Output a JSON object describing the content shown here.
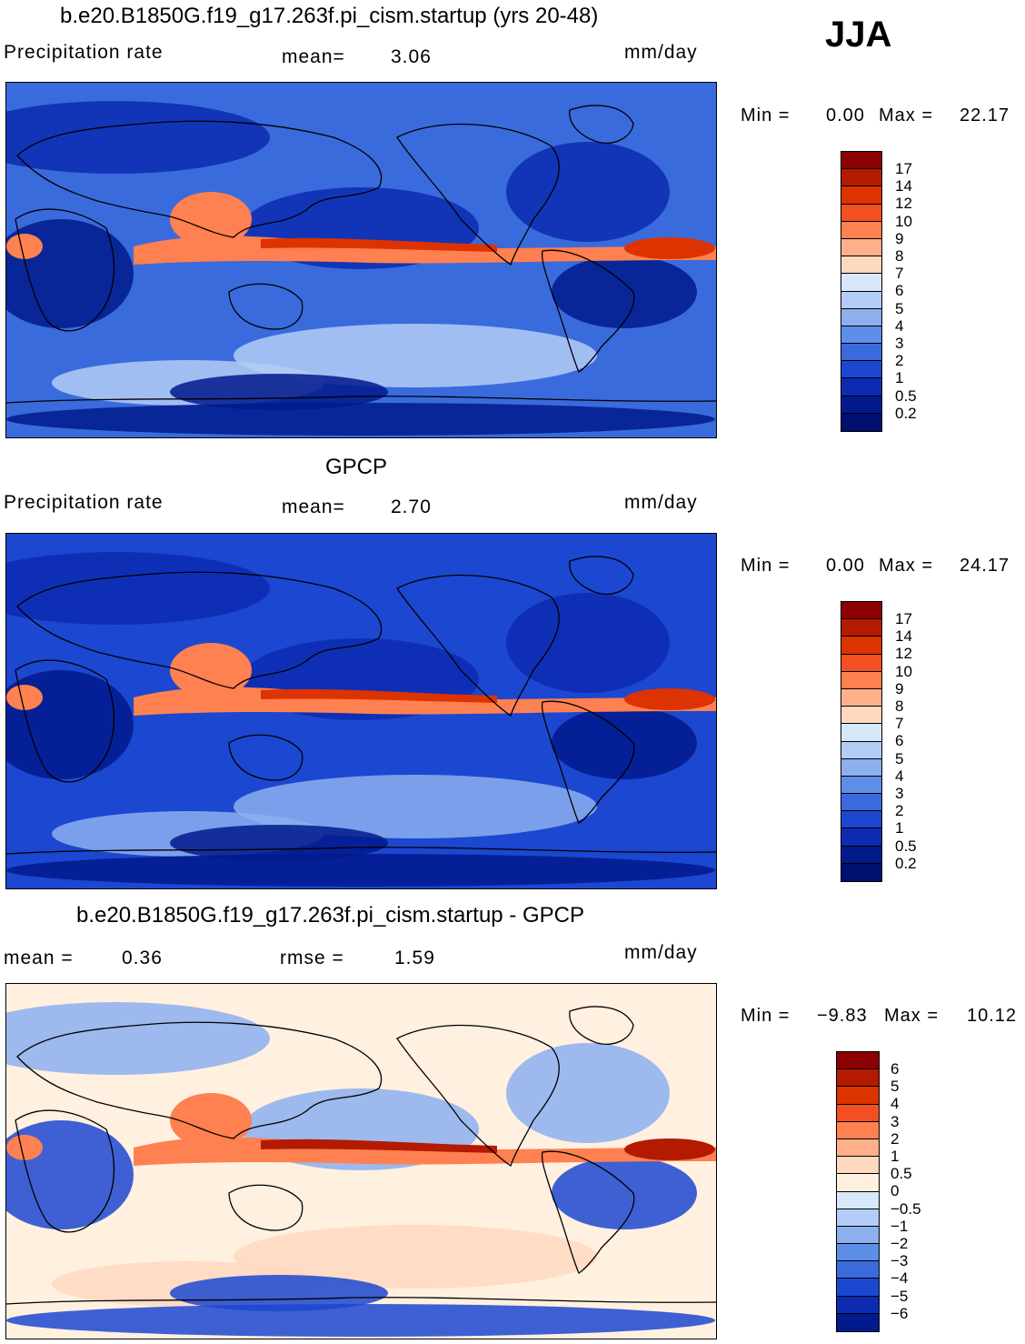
{
  "season": "JJA",
  "panels": [
    {
      "title": "b.e20.B1850G.f19_g17.263f.pi_cism.startup (yrs 20-48)",
      "left_label": "Precipitation  rate",
      "stat1_label": "mean=",
      "stat1_value": "3.06",
      "units": "mm/day",
      "min_label": "Min  =",
      "min_value": "0.00",
      "max_label": "Max  =",
      "max_value": "22.17",
      "colorbar": {
        "labels": [
          "17",
          "14",
          "12",
          "10",
          "9",
          "8",
          "7",
          "6",
          "5",
          "4",
          "3",
          "2",
          "1",
          "0.5",
          "0.2"
        ],
        "colors": [
          "#8b0000",
          "#b31a00",
          "#dc3300",
          "#f25022",
          "#ff8050",
          "#ffb08a",
          "#ffd8c0",
          "#d8e8fb",
          "#b4cdf6",
          "#8cafee",
          "#5e8ee9",
          "#3a6bdd",
          "#1c47d0",
          "#0c2bb0",
          "#011a8c",
          "#00106e"
        ]
      },
      "map_colors": {
        "background": "#3a6bdd",
        "dry": "#0c2bb0",
        "very_dry": "#011a8c",
        "moist": "#b4cdf6",
        "wet": "#ff8050",
        "very_wet": "#dc3300"
      }
    },
    {
      "title": "GPCP",
      "left_label": "Precipitation  rate",
      "stat1_label": "mean=",
      "stat1_value": "2.70",
      "units": "mm/day",
      "min_label": "Min  =",
      "min_value": "0.00",
      "max_label": "Max  =",
      "max_value": "24.17",
      "colorbar": {
        "labels": [
          "17",
          "14",
          "12",
          "10",
          "9",
          "8",
          "7",
          "6",
          "5",
          "4",
          "3",
          "2",
          "1",
          "0.5",
          "0.2"
        ],
        "colors": [
          "#8b0000",
          "#b31a00",
          "#dc3300",
          "#f25022",
          "#ff8050",
          "#ffb08a",
          "#ffd8c0",
          "#d8e8fb",
          "#b4cdf6",
          "#8cafee",
          "#5e8ee9",
          "#3a6bdd",
          "#1c47d0",
          "#0c2bb0",
          "#011a8c",
          "#00106e"
        ]
      },
      "map_colors": {
        "background": "#1c47d0",
        "dry": "#0c2bb0",
        "very_dry": "#011a8c",
        "moist": "#8cafee",
        "wet": "#ff8050",
        "very_wet": "#dc3300"
      }
    },
    {
      "title": "b.e20.B1850G.f19_g17.263f.pi_cism.startup - GPCP",
      "left_label": "mean  =",
      "left_value": "0.36",
      "stat1_label": "rmse  =",
      "stat1_value": "1.59",
      "units": "mm/day",
      "min_label": "Min  =",
      "min_value": "−9.83",
      "max_label": "Max  =",
      "max_value": "10.12",
      "colorbar": {
        "labels": [
          "6",
          "5",
          "4",
          "3",
          "2",
          "1",
          "0.5",
          "0",
          "−0.5",
          "−1",
          "−2",
          "−3",
          "−4",
          "−5",
          "−6"
        ],
        "colors": [
          "#8b0000",
          "#b31a00",
          "#dc3300",
          "#f25022",
          "#ff8050",
          "#ffb08a",
          "#ffd8c0",
          "#fff0e0",
          "#d8e8fb",
          "#b4cdf6",
          "#8cafee",
          "#5e8ee9",
          "#3a6bdd",
          "#1c47d0",
          "#0c2bb0",
          "#011a8c"
        ]
      },
      "map_colors": {
        "background": "#fff0e0",
        "dry": "#8cafee",
        "very_dry": "#1c47d0",
        "moist": "#ffd8c0",
        "wet": "#ff8050",
        "very_wet": "#b31a00"
      }
    }
  ]
}
